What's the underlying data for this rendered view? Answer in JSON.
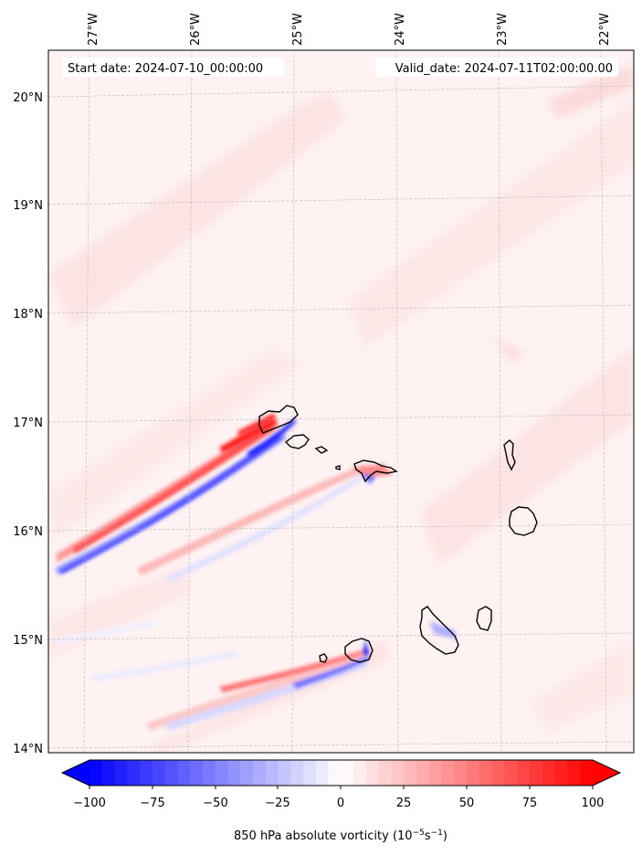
{
  "header": {
    "start_date": "Start date: 2024-07-10_00:00:00",
    "valid_date": "Valid_date: 2024-07-11T02:00:00.00"
  },
  "map": {
    "lon_labels": [
      "27°W",
      "26°W",
      "25°W",
      "24°W",
      "23°W",
      "22°W"
    ],
    "lat_labels": [
      "20°N",
      "19°N",
      "18°N",
      "17°N",
      "16°N",
      "15°N",
      "14°N"
    ],
    "gridlines": true,
    "field": "850 hPa absolute vorticity",
    "colormap": "bwr"
  },
  "colorbar": {
    "ticks": [
      "−100",
      "−75",
      "−50",
      "−25",
      "0",
      "25",
      "50",
      "75",
      "100"
    ],
    "label_text": "850 hPa absolute vorticity (10",
    "label_sup1": "−5",
    "label_mid": "s",
    "label_sup2": "−1",
    "label_close": ")",
    "min": -100,
    "max": 100,
    "extend": "both",
    "colors": {
      "negative": "#0000ff",
      "zero": "#ffffff",
      "positive": "#ff0000"
    }
  },
  "islands": [
    "Santo Antão",
    "São Vicente",
    "Santa Luzia",
    "São Nicolau",
    "Sal",
    "Boa Vista",
    "Maio",
    "Santiago",
    "Fogo",
    "Brava"
  ]
}
